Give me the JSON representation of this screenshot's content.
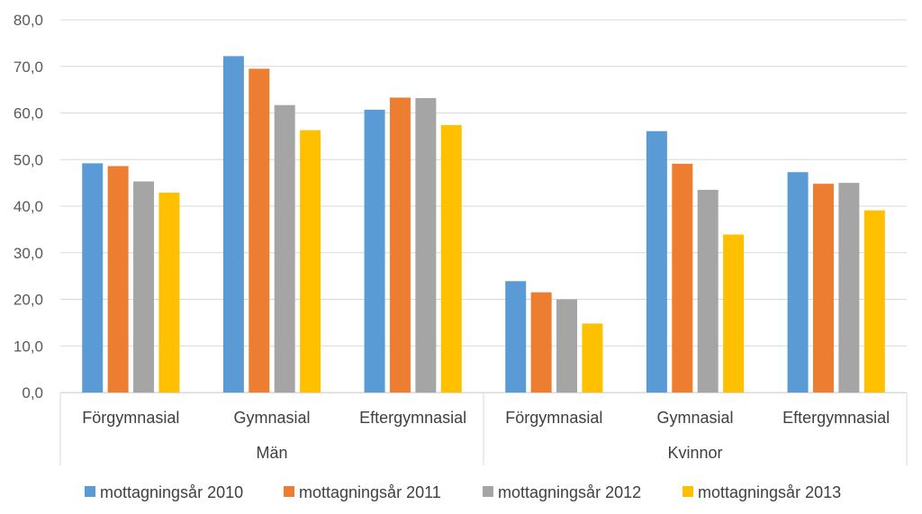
{
  "chart_data": {
    "type": "bar",
    "title": "",
    "xlabel": "",
    "ylabel": "",
    "ylim": [
      0,
      80
    ],
    "yticks": [
      "0,0",
      "10,0",
      "20,0",
      "30,0",
      "40,0",
      "50,0",
      "60,0",
      "70,0",
      "80,0"
    ],
    "grid": true,
    "legend_position": "bottom",
    "groups": [
      {
        "label": "Män",
        "categories": [
          "Förgymnasial",
          "Gymnasial",
          "Eftergymnasial"
        ]
      },
      {
        "label": "Kvinnor",
        "categories": [
          "Förgymnasial",
          "Gymnasial",
          "Eftergymnasial"
        ]
      }
    ],
    "series": [
      {
        "name": "mottagningsår 2010",
        "color": "#5B9BD5",
        "values": [
          49.2,
          72.2,
          60.7,
          23.9,
          56.1,
          47.3
        ]
      },
      {
        "name": "mottagningsår 2011",
        "color": "#ED7D31",
        "values": [
          48.6,
          69.5,
          63.3,
          21.5,
          49.1,
          44.8
        ]
      },
      {
        "name": "mottagningsår 2012",
        "color": "#A5A5A5",
        "values": [
          45.3,
          61.7,
          63.2,
          20.0,
          43.5,
          45.0
        ]
      },
      {
        "name": "mottagningsår 2013",
        "color": "#FFC000",
        "values": [
          42.9,
          56.3,
          57.4,
          14.8,
          33.9,
          39.1
        ]
      }
    ]
  }
}
